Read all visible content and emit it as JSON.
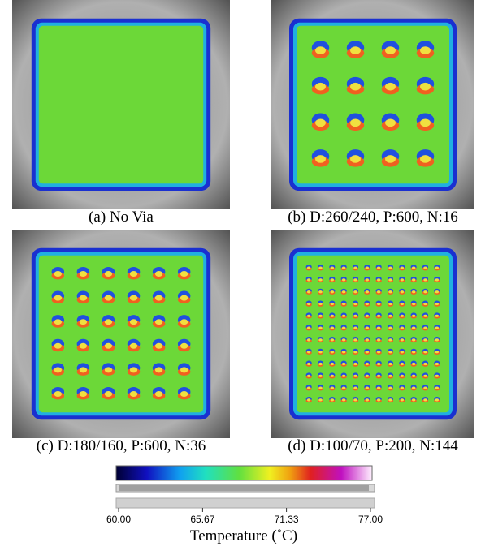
{
  "panels": [
    {
      "caption": "(a) No Via"
    },
    {
      "caption": "(b) D:260/240, P:600, N:16"
    },
    {
      "caption": "(c) D:180/160, P:600, N:36"
    },
    {
      "caption": "(d) D:100/70, P:200, N:144"
    }
  ],
  "colorbar": {
    "range": [
      60,
      77
    ],
    "ticks": [
      {
        "value": 60,
        "label": "60.00"
      },
      {
        "value": 65.67,
        "label": "65.67"
      },
      {
        "value": 71.33,
        "label": "71.33"
      },
      {
        "value": 77,
        "label": "77.00"
      }
    ],
    "label": "Temperature (˚C)"
  }
}
